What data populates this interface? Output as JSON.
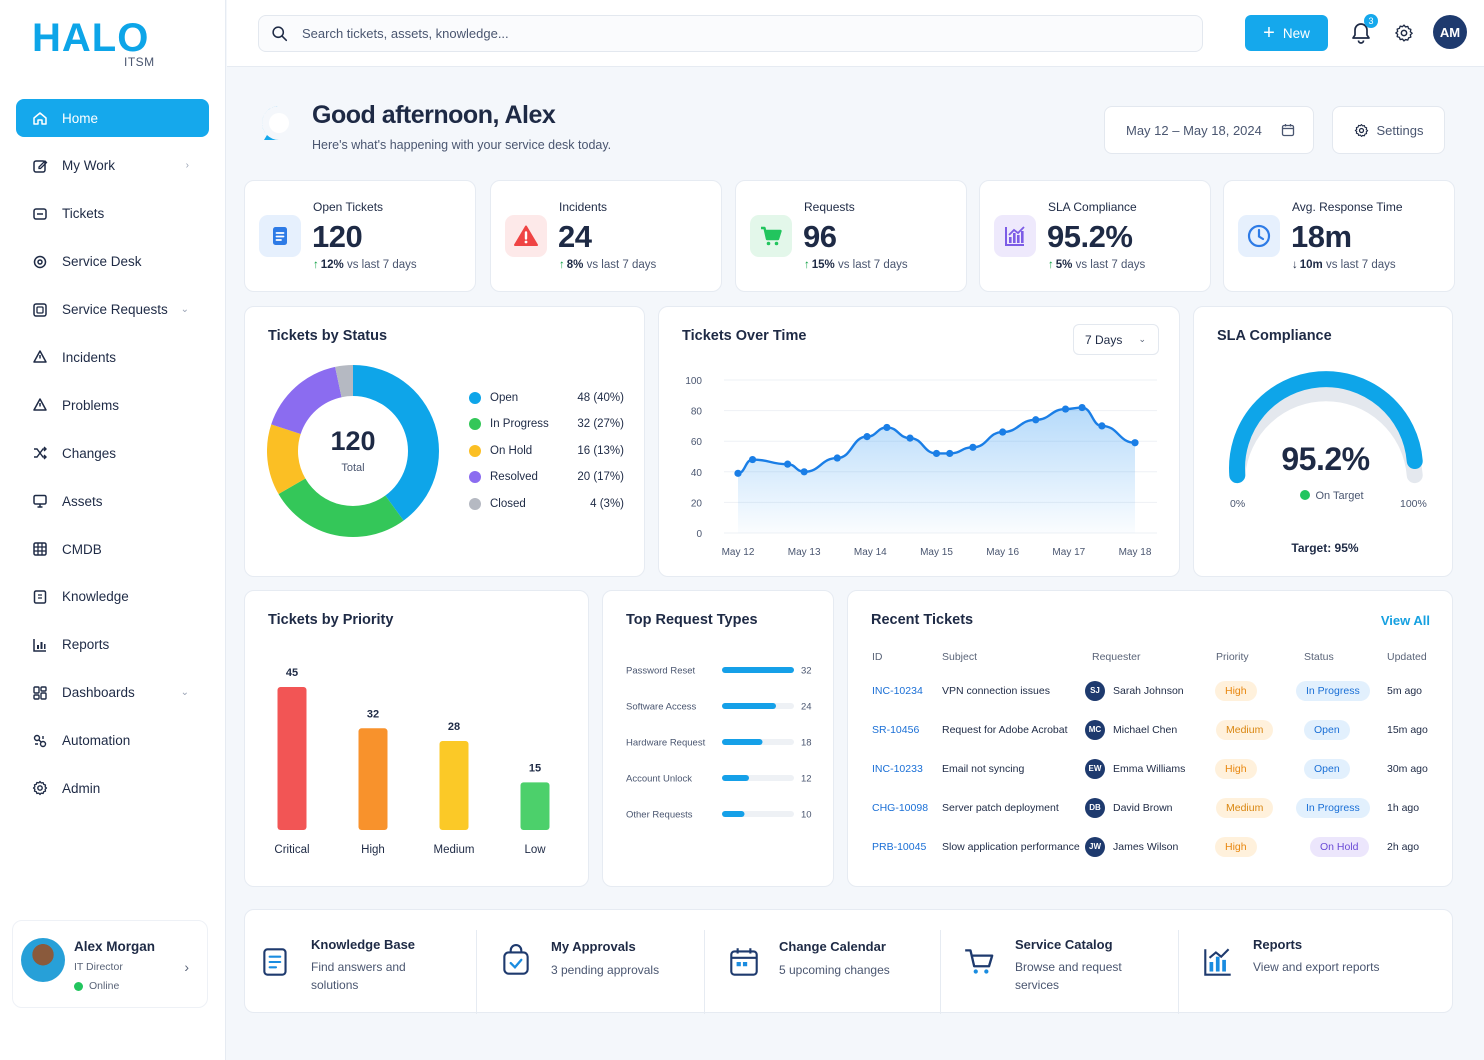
{
  "brand": {
    "name": "HALO",
    "sub": "ITSM"
  },
  "nav": [
    {
      "label": "Home",
      "icon": "home-icon",
      "active": true
    },
    {
      "label": "My Work",
      "icon": "edit-icon",
      "chevron": "›"
    },
    {
      "label": "Tickets",
      "icon": "ticket-icon"
    },
    {
      "label": "Service Desk",
      "icon": "headset-icon"
    },
    {
      "label": "Service Requests",
      "icon": "request-icon",
      "chevron": "⌄"
    },
    {
      "label": "Incidents",
      "icon": "alert-icon"
    },
    {
      "label": "Problems",
      "icon": "warning-icon"
    },
    {
      "label": "Changes",
      "icon": "shuffle-icon"
    },
    {
      "label": "Assets",
      "icon": "monitor-icon"
    },
    {
      "label": "CMDB",
      "icon": "grid-icon"
    },
    {
      "label": "Knowledge",
      "icon": "book-icon"
    },
    {
      "label": "Reports",
      "icon": "bar-chart-icon"
    },
    {
      "label": "Dashboards",
      "icon": "dashboard-icon",
      "chevron": "⌄"
    },
    {
      "label": "Automation",
      "icon": "automation-icon"
    },
    {
      "label": "Admin",
      "icon": "gear-icon"
    }
  ],
  "profile": {
    "name": "Alex Morgan",
    "role": "IT Director",
    "status": "Online"
  },
  "topbar": {
    "search_placeholder": "Search tickets, assets, knowledge...",
    "new_label": "New",
    "notification_count": "3",
    "user_initials": "AM"
  },
  "header": {
    "greeting": "Good afternoon, Alex",
    "subtitle": "Here's what's happening with your service desk today.",
    "date_range": "May 12 – May 18, 2024",
    "settings_label": "Settings"
  },
  "kpis": [
    {
      "label": "Open Tickets",
      "value": "120",
      "delta": "12%",
      "delta_text": "vs last 7 days",
      "arrow": "↑",
      "icon": "document-icon",
      "color": "#2e7be6",
      "bg": "#e6f0fd"
    },
    {
      "label": "Incidents",
      "value": "24",
      "delta": "8%",
      "delta_text": "vs last 7 days",
      "arrow": "↑",
      "icon": "warning-triangle-icon",
      "color": "#ef4444",
      "bg": "#fde9e9"
    },
    {
      "label": "Requests",
      "value": "96",
      "delta": "15%",
      "delta_text": "vs last 7 days",
      "arrow": "↑",
      "icon": "cart-icon",
      "color": "#22c55e",
      "bg": "#e3f7ea"
    },
    {
      "label": "SLA Compliance",
      "value": "95.2%",
      "delta": "5%",
      "delta_text": "vs last 7 days",
      "arrow": "↑",
      "icon": "chart-icon",
      "color": "#7c5ce6",
      "bg": "#eee9fc"
    },
    {
      "label": "Avg. Response Time",
      "value": "18m",
      "delta": "10m",
      "delta_text": "vs last 7 days",
      "arrow": "↓",
      "icon": "clock-icon",
      "color": "#2e7be6",
      "bg": "#e6f0fd"
    }
  ],
  "status_chart": {
    "title": "Tickets by Status",
    "center_value": "120",
    "center_label": "Total",
    "chart_data": {
      "type": "pie",
      "categories": [
        "Open",
        "In Progress",
        "On Hold",
        "Resolved",
        "Closed"
      ],
      "values": [
        48,
        32,
        16,
        20,
        4
      ],
      "labels": [
        "48 (40%)",
        "32 (27%)",
        "16 (13%)",
        "20 (17%)",
        "4 (3%)"
      ],
      "colors": [
        "#0ea5e9",
        "#34c759",
        "#fbbf24",
        "#8b6cf0",
        "#b5b9c2"
      ]
    }
  },
  "time_chart": {
    "title": "Tickets Over Time",
    "range_label": "7 Days",
    "chart_data": {
      "type": "area",
      "x": [
        "May 12",
        "May 13",
        "May 14",
        "May 15",
        "May 16",
        "May 17",
        "May 18"
      ],
      "y_ticks": [
        0,
        20,
        40,
        60,
        80,
        100
      ],
      "ylim": [
        0,
        100
      ],
      "points_x": [
        0,
        0.22,
        0.75,
        1.0,
        1.5,
        1.95,
        2.25,
        2.6,
        3.0,
        3.2,
        3.55,
        4.0,
        4.5,
        4.95,
        5.2,
        5.5,
        6.0
      ],
      "points_y": [
        39,
        48,
        45,
        40,
        49,
        63,
        69,
        62,
        52,
        52,
        56,
        66,
        74,
        81,
        82,
        70,
        59
      ]
    }
  },
  "sla": {
    "title": "SLA Compliance",
    "value": "95.2%",
    "status": "On Target",
    "min_label": "0%",
    "max_label": "100%",
    "target_text": "Target: 95%",
    "fraction": 0.952
  },
  "priority_chart": {
    "title": "Tickets by Priority",
    "chart_data": {
      "type": "bar",
      "categories": [
        "Critical",
        "High",
        "Medium",
        "Low"
      ],
      "values": [
        45,
        32,
        28,
        15
      ],
      "colors": [
        "#f25555",
        "#f8922c",
        "#fbc927",
        "#4cd06b"
      ],
      "ylim": [
        0,
        45
      ]
    }
  },
  "request_types": {
    "title": "Top Request Types",
    "chart_data": {
      "type": "bar",
      "categories": [
        "Password Reset",
        "Software Access",
        "Hardware Request",
        "Account Unlock",
        "Other Requests"
      ],
      "values": [
        32,
        24,
        18,
        12,
        10
      ],
      "xlim": [
        0,
        32
      ]
    }
  },
  "recent": {
    "title": "Recent Tickets",
    "view_all": "View All",
    "headers": [
      "ID",
      "Subject",
      "Requester",
      "Priority",
      "Status",
      "Updated"
    ],
    "rows": [
      {
        "id": "INC-10234",
        "subject": "VPN connection issues",
        "initials": "SJ",
        "requester": "Sarah Johnson",
        "priority": "High",
        "status": "In Progress",
        "updated": "5m ago"
      },
      {
        "id": "SR-10456",
        "subject": "Request for Adobe Acrobat",
        "initials": "MC",
        "requester": "Michael Chen",
        "priority": "Medium",
        "status": "Open",
        "updated": "15m ago"
      },
      {
        "id": "INC-10233",
        "subject": "Email not syncing",
        "initials": "EW",
        "requester": "Emma Williams",
        "priority": "High",
        "status": "Open",
        "updated": "30m ago"
      },
      {
        "id": "CHG-10098",
        "subject": "Server patch deployment",
        "initials": "DB",
        "requester": "David Brown",
        "priority": "Medium",
        "status": "In Progress",
        "updated": "1h ago"
      },
      {
        "id": "PRB-10045",
        "subject": "Slow application performance",
        "initials": "JW",
        "requester": "James Wilson",
        "priority": "High",
        "status": "On Hold",
        "updated": "2h ago"
      }
    ]
  },
  "quick_links": [
    {
      "title": "Knowledge Base",
      "desc": "Find answers and solutions",
      "icon": "knowledge-icon"
    },
    {
      "title": "My Approvals",
      "desc": "3 pending approvals",
      "icon": "approval-icon"
    },
    {
      "title": "Change Calendar",
      "desc": "5 upcoming changes",
      "icon": "calendar-icon"
    },
    {
      "title": "Service Catalog",
      "desc": "Browse and request services",
      "icon": "cart-icon"
    },
    {
      "title": "Reports",
      "desc": "View and export reports",
      "icon": "report-icon"
    }
  ]
}
